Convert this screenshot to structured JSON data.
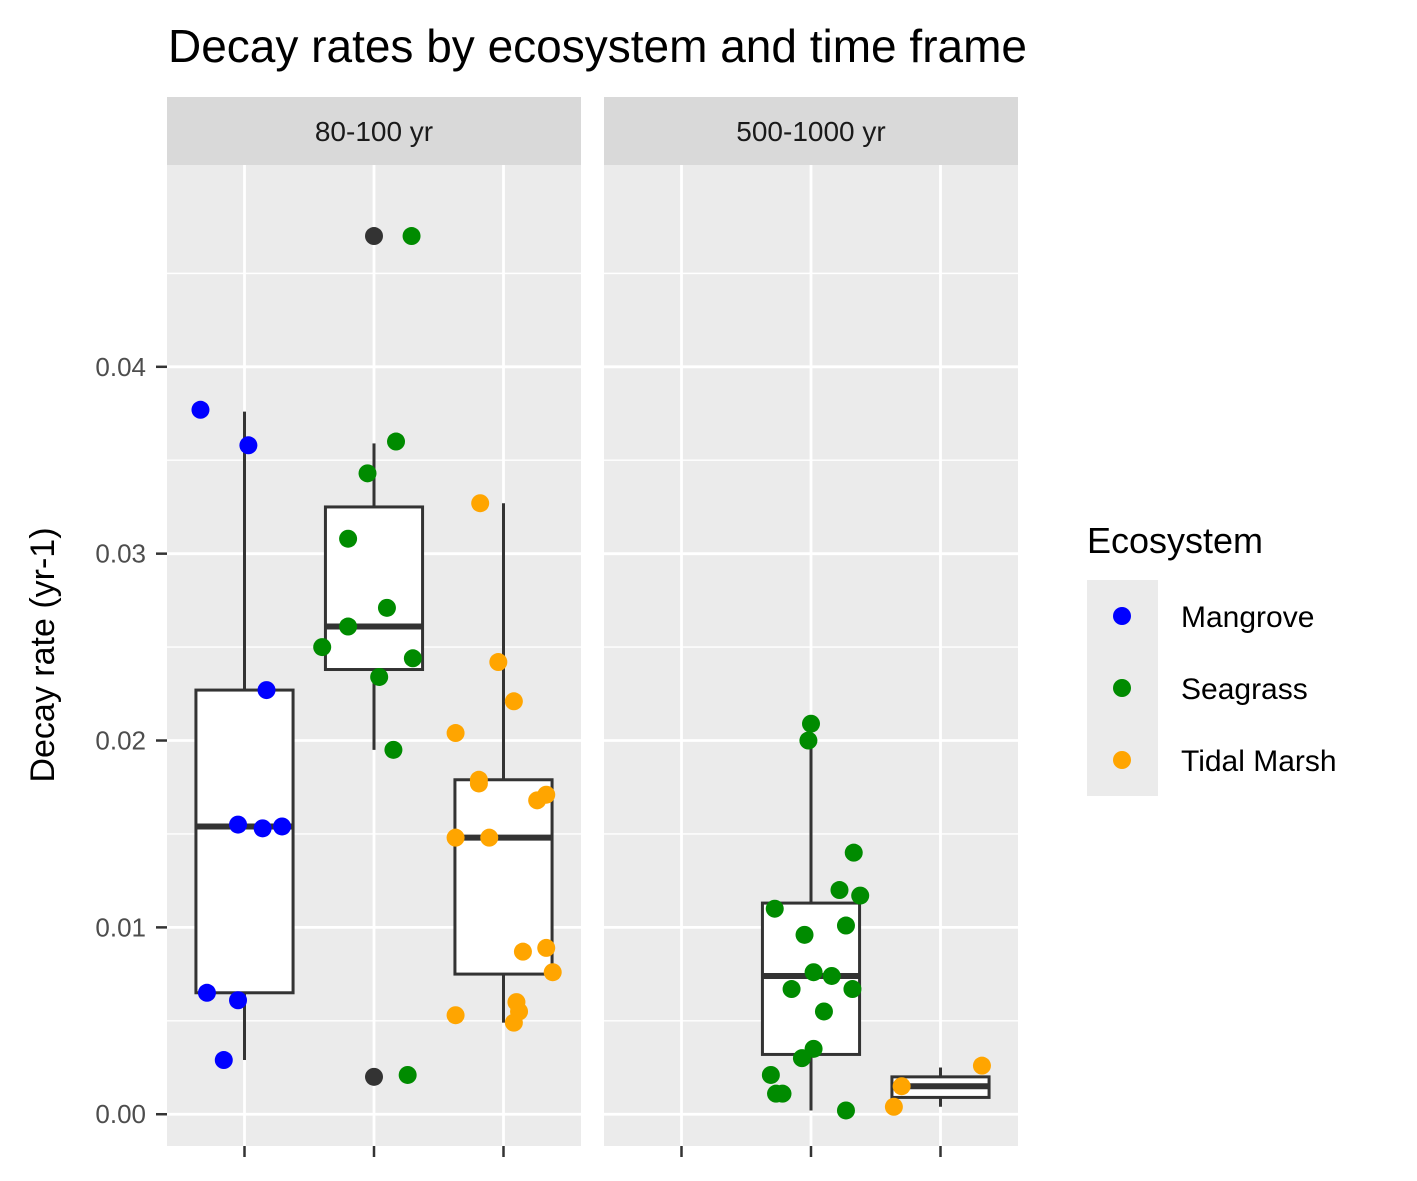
{
  "chart_data": {
    "type": "boxplot",
    "title": "Decay rates by ecosystem and time frame",
    "xlabel": "",
    "ylabel": "Decay rate (yr-1)",
    "ylim": [
      -0.0017,
      0.0508
    ],
    "y_ticks": [
      0.0,
      0.01,
      0.02,
      0.03,
      0.04
    ],
    "y_tick_labels": [
      "0.00",
      "0.01",
      "0.02",
      "0.03",
      "0.04"
    ],
    "categories": [
      "Mangrove",
      "Seagrass",
      "Tidal Marsh"
    ],
    "grid": true,
    "legend": {
      "title": "Ecosystem",
      "position": "right",
      "entries": [
        {
          "name": "Mangrove",
          "color": "#0000ff"
        },
        {
          "name": "Seagrass",
          "color": "#008b00"
        },
        {
          "name": "Tidal Marsh",
          "color": "#ffa500"
        }
      ]
    },
    "outlier_color": "#333333",
    "panels": [
      {
        "label": "80-100 yr",
        "boxes": [
          {
            "category": "Mangrove",
            "min": 0.0029,
            "q1": 0.0065,
            "median": 0.0154,
            "q3": 0.0227,
            "max": 0.0376,
            "outliers": []
          },
          {
            "category": "Seagrass",
            "min": 0.0195,
            "q1": 0.0238,
            "median": 0.0261,
            "q3": 0.0325,
            "max": 0.0359,
            "outliers": [
              0.047,
              0.002
            ]
          },
          {
            "category": "Tidal Marsh",
            "min": 0.0049,
            "q1": 0.0075,
            "median": 0.0148,
            "q3": 0.0179,
            "max": 0.0327,
            "outliers": []
          }
        ],
        "points": [
          {
            "category": "Mangrove",
            "jitter": -0.34,
            "y": 0.0377
          },
          {
            "category": "Mangrove",
            "jitter": 0.03,
            "y": 0.0358
          },
          {
            "category": "Mangrove",
            "jitter": 0.17,
            "y": 0.0227
          },
          {
            "category": "Mangrove",
            "jitter": -0.05,
            "y": 0.0155
          },
          {
            "category": "Mangrove",
            "jitter": 0.14,
            "y": 0.0153
          },
          {
            "category": "Mangrove",
            "jitter": 0.29,
            "y": 0.0154
          },
          {
            "category": "Mangrove",
            "jitter": -0.29,
            "y": 0.0065
          },
          {
            "category": "Mangrove",
            "jitter": -0.05,
            "y": 0.0061
          },
          {
            "category": "Mangrove",
            "jitter": -0.16,
            "y": 0.0029
          },
          {
            "category": "Seagrass",
            "jitter": 0.29,
            "y": 0.047
          },
          {
            "category": "Seagrass",
            "jitter": 0.17,
            "y": 0.036
          },
          {
            "category": "Seagrass",
            "jitter": -0.05,
            "y": 0.0343
          },
          {
            "category": "Seagrass",
            "jitter": -0.2,
            "y": 0.0308
          },
          {
            "category": "Seagrass",
            "jitter": 0.1,
            "y": 0.0271
          },
          {
            "category": "Seagrass",
            "jitter": -0.2,
            "y": 0.0261
          },
          {
            "category": "Seagrass",
            "jitter": -0.4,
            "y": 0.025
          },
          {
            "category": "Seagrass",
            "jitter": 0.3,
            "y": 0.0244
          },
          {
            "category": "Seagrass",
            "jitter": 0.04,
            "y": 0.0234
          },
          {
            "category": "Seagrass",
            "jitter": 0.15,
            "y": 0.0195
          },
          {
            "category": "Seagrass",
            "jitter": 0.26,
            "y": 0.0021
          },
          {
            "category": "Tidal Marsh",
            "jitter": -0.18,
            "y": 0.0327
          },
          {
            "category": "Tidal Marsh",
            "jitter": -0.04,
            "y": 0.0242
          },
          {
            "category": "Tidal Marsh",
            "jitter": 0.08,
            "y": 0.0221
          },
          {
            "category": "Tidal Marsh",
            "jitter": -0.37,
            "y": 0.0204
          },
          {
            "category": "Tidal Marsh",
            "jitter": -0.19,
            "y": 0.0179
          },
          {
            "category": "Tidal Marsh",
            "jitter": -0.19,
            "y": 0.0177
          },
          {
            "category": "Tidal Marsh",
            "jitter": 0.33,
            "y": 0.0171
          },
          {
            "category": "Tidal Marsh",
            "jitter": 0.26,
            "y": 0.0168
          },
          {
            "category": "Tidal Marsh",
            "jitter": -0.37,
            "y": 0.0148
          },
          {
            "category": "Tidal Marsh",
            "jitter": -0.11,
            "y": 0.0148
          },
          {
            "category": "Tidal Marsh",
            "jitter": 0.33,
            "y": 0.0089
          },
          {
            "category": "Tidal Marsh",
            "jitter": 0.15,
            "y": 0.0087
          },
          {
            "category": "Tidal Marsh",
            "jitter": 0.38,
            "y": 0.0076
          },
          {
            "category": "Tidal Marsh",
            "jitter": 0.1,
            "y": 0.006
          },
          {
            "category": "Tidal Marsh",
            "jitter": 0.12,
            "y": 0.0055
          },
          {
            "category": "Tidal Marsh",
            "jitter": -0.37,
            "y": 0.0053
          },
          {
            "category": "Tidal Marsh",
            "jitter": 0.08,
            "y": 0.0049
          }
        ]
      },
      {
        "label": "500-1000 yr",
        "boxes": [
          {
            "category": "Mangrove"
          },
          {
            "category": "Seagrass",
            "min": 0.0002,
            "q1": 0.0032,
            "median": 0.0074,
            "q3": 0.0113,
            "max": 0.02,
            "outliers": []
          },
          {
            "category": "Tidal Marsh",
            "min": 0.0004,
            "q1": 0.0009,
            "median": 0.0015,
            "q3": 0.002,
            "max": 0.0025,
            "outliers": []
          }
        ],
        "points": [
          {
            "category": "Seagrass",
            "jitter": 0.0,
            "y": 0.0209
          },
          {
            "category": "Seagrass",
            "jitter": -0.02,
            "y": 0.02
          },
          {
            "category": "Seagrass",
            "jitter": 0.33,
            "y": 0.014
          },
          {
            "category": "Seagrass",
            "jitter": 0.22,
            "y": 0.012
          },
          {
            "category": "Seagrass",
            "jitter": 0.38,
            "y": 0.0117
          },
          {
            "category": "Seagrass",
            "jitter": -0.28,
            "y": 0.011
          },
          {
            "category": "Seagrass",
            "jitter": 0.27,
            "y": 0.0101
          },
          {
            "category": "Seagrass",
            "jitter": -0.05,
            "y": 0.0096
          },
          {
            "category": "Seagrass",
            "jitter": 0.02,
            "y": 0.0076
          },
          {
            "category": "Seagrass",
            "jitter": 0.16,
            "y": 0.0074
          },
          {
            "category": "Seagrass",
            "jitter": -0.15,
            "y": 0.0067
          },
          {
            "category": "Seagrass",
            "jitter": 0.32,
            "y": 0.0067
          },
          {
            "category": "Seagrass",
            "jitter": 0.1,
            "y": 0.0055
          },
          {
            "category": "Seagrass",
            "jitter": 0.02,
            "y": 0.0035
          },
          {
            "category": "Seagrass",
            "jitter": -0.07,
            "y": 0.003
          },
          {
            "category": "Seagrass",
            "jitter": -0.31,
            "y": 0.0021
          },
          {
            "category": "Seagrass",
            "jitter": -0.27,
            "y": 0.0011
          },
          {
            "category": "Seagrass",
            "jitter": -0.22,
            "y": 0.0011
          },
          {
            "category": "Seagrass",
            "jitter": 0.27,
            "y": 0.0002
          },
          {
            "category": "Tidal Marsh",
            "jitter": 0.32,
            "y": 0.0026
          },
          {
            "category": "Tidal Marsh",
            "jitter": -0.3,
            "y": 0.0015
          },
          {
            "category": "Tidal Marsh",
            "jitter": -0.36,
            "y": 0.0004
          }
        ]
      }
    ]
  }
}
